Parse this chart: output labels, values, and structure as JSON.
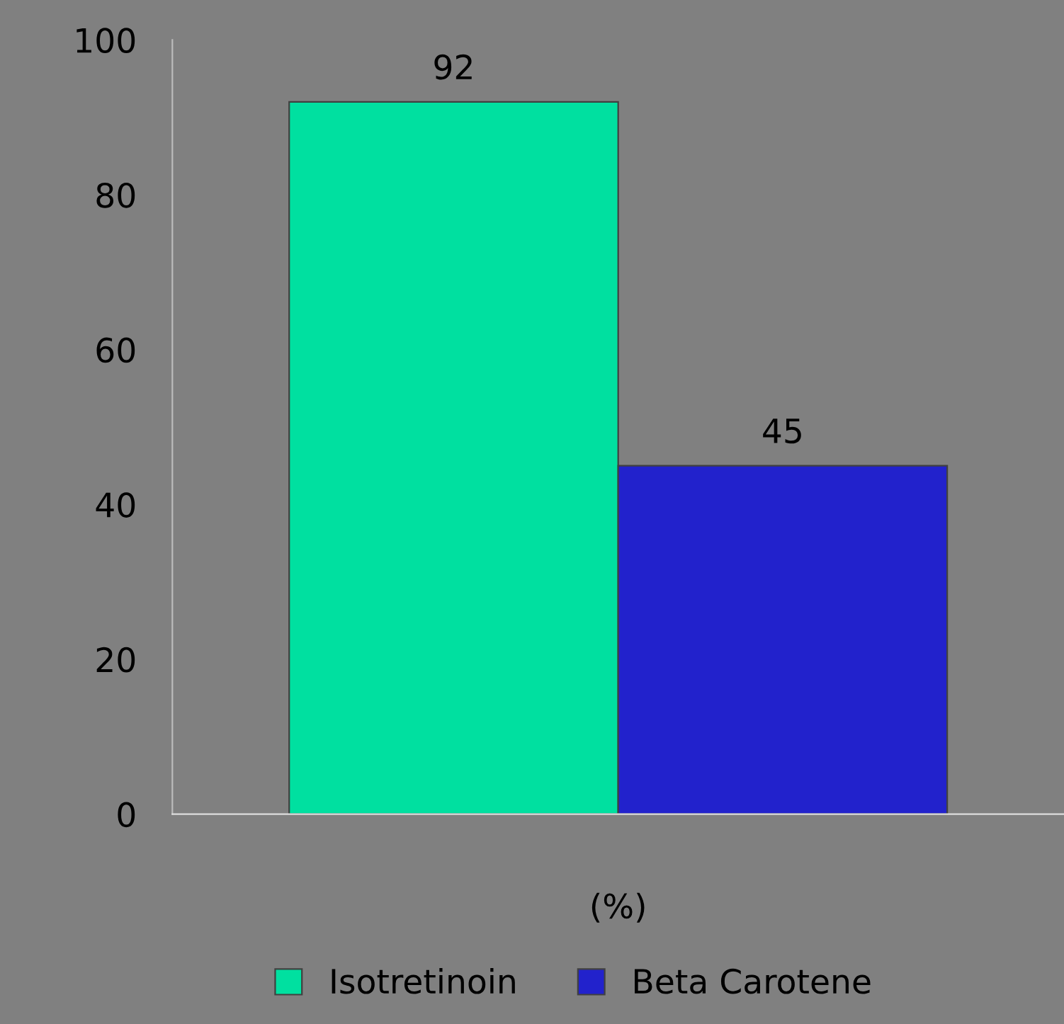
{
  "chart_data": {
    "type": "bar",
    "categories": [
      "(%)"
    ],
    "series": [
      {
        "name": "Isotretinoin",
        "color": "#00e0a0",
        "values": [
          92
        ]
      },
      {
        "name": "Beta Carotene",
        "color": "#2222cc",
        "values": [
          45
        ]
      }
    ],
    "ylim": [
      0,
      100
    ],
    "yticks": [
      0,
      20,
      40,
      60,
      80,
      100
    ],
    "grid": false,
    "legend": "bottom",
    "data_labels": true
  }
}
